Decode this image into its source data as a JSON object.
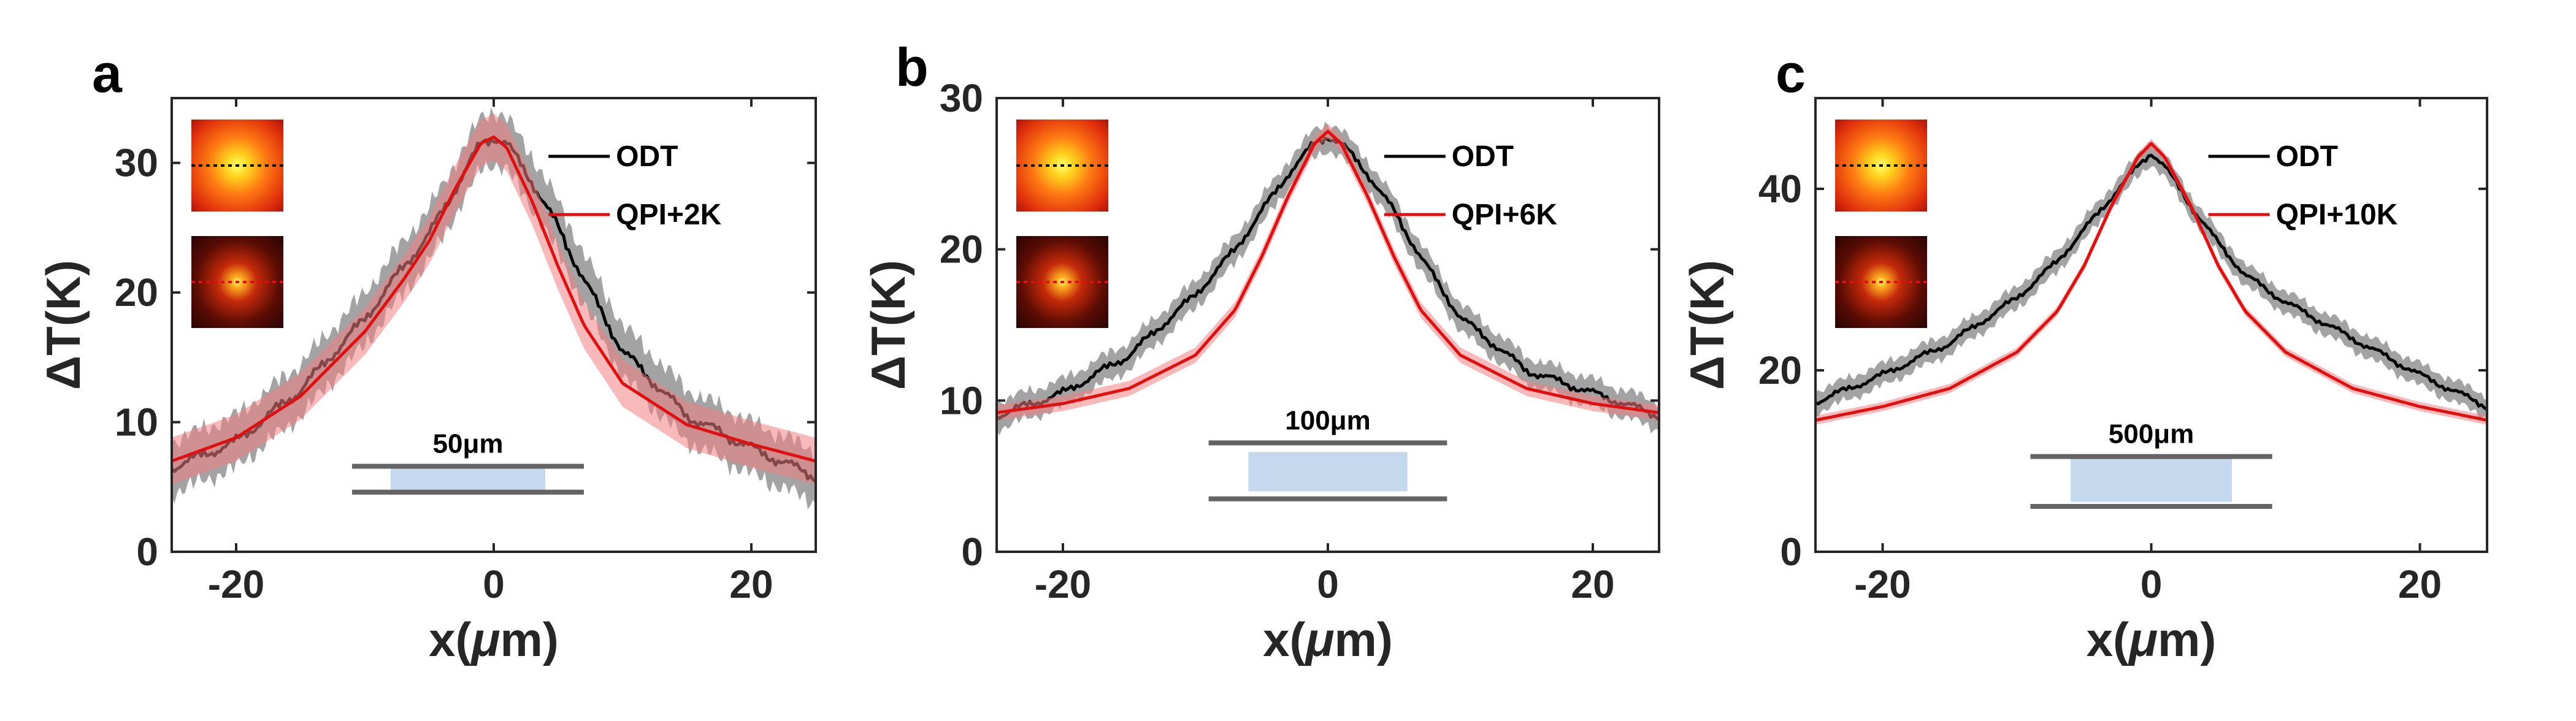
{
  "colors": {
    "odt": "#000000",
    "odt_band": "#8c8c8c",
    "qpi": "#e01010",
    "qpi_band": "#f08080",
    "channel": "#c5d9ee",
    "wall": "#646464",
    "axis": "#262626"
  },
  "chart_data": [
    {
      "type": "line",
      "panel_label": "a",
      "xlabel_prefix": "x(",
      "xlabel_symbol": "μ",
      "xlabel_suffix": "m)",
      "ylabel": "ΔT(K)",
      "xlim": [
        -25,
        25
      ],
      "ylim": [
        0,
        35
      ],
      "xticks": [
        -20,
        0,
        20
      ],
      "xtick_labels": [
        "-20",
        "0",
        "20"
      ],
      "yticks": [
        0,
        10,
        20,
        30
      ],
      "ytick_labels": [
        "0",
        "10",
        "20",
        "30"
      ],
      "channel_label": "50μm",
      "channel": {
        "x_range": [
          -8,
          4
        ],
        "band_y": [
          4.4,
          6.6
        ],
        "wall_y": [
          4.6,
          6.6
        ],
        "wall_x": [
          -11,
          7
        ]
      },
      "series": [
        {
          "name": "ODT",
          "x": [
            -25,
            -20,
            -15,
            -10,
            -7,
            -5,
            -3,
            -1,
            0,
            1,
            3,
            5,
            7,
            10,
            15,
            20,
            25
          ],
          "y": [
            6.5,
            8.5,
            12.5,
            18,
            22,
            24.5,
            28,
            31.5,
            32,
            31.5,
            28.5,
            25,
            21,
            15.5,
            10.5,
            8,
            5.8
          ],
          "band": 2.0,
          "roughness": 0.55
        },
        {
          "name": "QPI+2K",
          "x": [
            -25,
            -20,
            -15,
            -10,
            -7,
            -5,
            -3,
            -1,
            0,
            1,
            3,
            5,
            7,
            10,
            15,
            20,
            25
          ],
          "y": [
            7.0,
            8.8,
            12.0,
            17.0,
            21.0,
            24.0,
            28.0,
            31.5,
            32.0,
            31.2,
            27.0,
            22.0,
            17.5,
            13.0,
            9.8,
            8.3,
            7.0
          ],
          "band": 1.8,
          "roughness": 0
        }
      ],
      "insets": [
        {
          "line_color": "#000000",
          "size": "large"
        },
        {
          "line_color": "#e01010",
          "size": "small"
        }
      ]
    },
    {
      "type": "line",
      "panel_label": "b",
      "xlabel_prefix": "x(",
      "xlabel_symbol": "μ",
      "xlabel_suffix": "m)",
      "ylabel": "ΔT(K)",
      "xlim": [
        -25,
        25
      ],
      "ylim": [
        0,
        30
      ],
      "xticks": [
        -20,
        0,
        20
      ],
      "xtick_labels": [
        "-20",
        "0",
        "20"
      ],
      "yticks": [
        0,
        10,
        20,
        30
      ],
      "ytick_labels": [
        "0",
        "10",
        "20",
        "30"
      ],
      "channel_label": "100μm",
      "channel": {
        "x_range": [
          -6,
          6
        ],
        "band_y": [
          4.0,
          6.6
        ],
        "wall_y": [
          3.5,
          7.2
        ],
        "wall_x": [
          -9,
          9
        ]
      },
      "series": [
        {
          "name": "ODT",
          "x": [
            -25,
            -20,
            -15,
            -10,
            -7,
            -5,
            -3,
            -1,
            0,
            1,
            3,
            5,
            7,
            10,
            15,
            20,
            25
          ],
          "y": [
            9.0,
            10.5,
            13.0,
            17.0,
            20.0,
            22.5,
            25.0,
            27.0,
            27.5,
            27.0,
            25.0,
            22.5,
            19.5,
            15.5,
            12.0,
            10.5,
            9.0
          ],
          "band": 0.9,
          "roughness": 0.35
        },
        {
          "name": "QPI+6K",
          "x": [
            -25,
            -20,
            -15,
            -10,
            -7,
            -5,
            -3,
            -1,
            0,
            1,
            3,
            5,
            7,
            10,
            15,
            20,
            25
          ],
          "y": [
            9.2,
            9.8,
            10.8,
            13.0,
            16.0,
            19.5,
            23.5,
            27.0,
            27.8,
            27.0,
            23.5,
            19.5,
            16.0,
            13.0,
            10.8,
            9.8,
            9.2
          ],
          "band": 0.5,
          "roughness": 0
        }
      ],
      "insets": [
        {
          "line_color": "#000000",
          "size": "large"
        },
        {
          "line_color": "#e01010",
          "size": "small"
        }
      ]
    },
    {
      "type": "line",
      "panel_label": "c",
      "xlabel_prefix": "x(",
      "xlabel_symbol": "μ",
      "xlabel_suffix": "m)",
      "ylabel": "ΔT(K)",
      "xlim": [
        -25,
        25
      ],
      "ylim": [
        0,
        50
      ],
      "xticks": [
        -20,
        0,
        20
      ],
      "xtick_labels": [
        "-20",
        "0",
        "20"
      ],
      "yticks": [
        0,
        20,
        40
      ],
      "ytick_labels": [
        "0",
        "20",
        "40"
      ],
      "channel_label": "500μm",
      "channel": {
        "x_range": [
          -6,
          6
        ],
        "band_y": [
          5.5,
          10.5
        ],
        "wall_y": [
          5.0,
          10.5
        ],
        "wall_x": [
          -9,
          9
        ]
      },
      "series": [
        {
          "name": "ODT",
          "x": [
            -25,
            -20,
            -15,
            -10,
            -7,
            -5,
            -3,
            -1,
            0,
            1,
            3,
            5,
            7,
            10,
            15,
            20,
            25
          ],
          "y": [
            16.5,
            19.5,
            23.0,
            28.0,
            32.0,
            35.5,
            39.0,
            42.5,
            44.0,
            42.5,
            38.0,
            34.0,
            30.5,
            27.5,
            23.5,
            19.5,
            16.0
          ],
          "band": 1.2,
          "roughness": 0.45
        },
        {
          "name": "QPI+10K",
          "x": [
            -25,
            -20,
            -15,
            -10,
            -7,
            -5,
            -3,
            -1,
            0,
            1,
            3,
            5,
            7,
            10,
            15,
            20,
            25
          ],
          "y": [
            14.5,
            16.0,
            18.0,
            22.0,
            26.5,
            31.5,
            38.0,
            43.5,
            45.0,
            43.5,
            38.0,
            31.5,
            26.5,
            22.0,
            18.0,
            16.0,
            14.5
          ],
          "band": 0.5,
          "roughness": 0
        }
      ],
      "insets": [
        {
          "line_color": "#000000",
          "size": "large"
        },
        {
          "line_color": "#e01010",
          "size": "small"
        }
      ]
    }
  ]
}
